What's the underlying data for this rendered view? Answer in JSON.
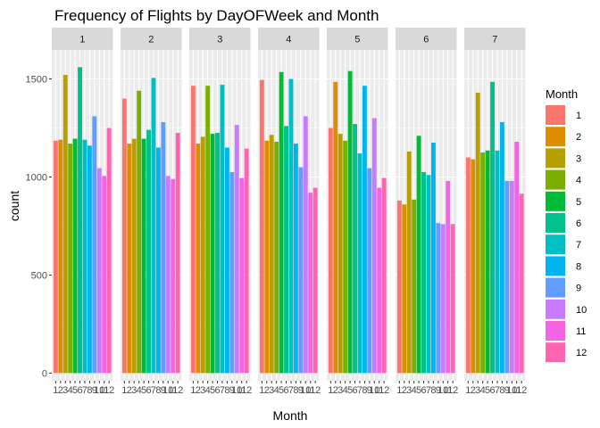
{
  "chart_data": {
    "type": "bar",
    "title": "Frequency of Flights by DayOFWeek and Month",
    "xlabel": "Month",
    "ylabel": "count",
    "ylim": [
      0,
      1650
    ],
    "yticks": [
      0,
      500,
      1000,
      1500
    ],
    "categories": [
      "1",
      "2",
      "3",
      "4",
      "5",
      "6",
      "7",
      "8",
      "9",
      "10",
      "11",
      "12"
    ],
    "panel_background": "#ebebeb",
    "strip_background": "#d9d9d9",
    "grid": true,
    "legend_position": "right",
    "legend": {
      "title": "Month",
      "entries": [
        {
          "label": "1",
          "color": "#F8766D"
        },
        {
          "label": "2",
          "color": "#DE8C00"
        },
        {
          "label": "3",
          "color": "#B79F00"
        },
        {
          "label": "4",
          "color": "#7CAE00"
        },
        {
          "label": "5",
          "color": "#00BA38"
        },
        {
          "label": "6",
          "color": "#00C08B"
        },
        {
          "label": "7",
          "color": "#00BFC4"
        },
        {
          "label": "8",
          "color": "#00B4F0"
        },
        {
          "label": "9",
          "color": "#619CFF"
        },
        {
          "label": "10",
          "color": "#C77CFF"
        },
        {
          "label": "11",
          "color": "#F564E3"
        },
        {
          "label": "12",
          "color": "#FF64B0"
        }
      ]
    },
    "facets": [
      {
        "label": "1",
        "values": [
          1185,
          1190,
          1520,
          1170,
          1195,
          1560,
          1190,
          1160,
          1310,
          1045,
          1005,
          1250
        ]
      },
      {
        "label": "2",
        "values": [
          1400,
          1170,
          1195,
          1440,
          1195,
          1240,
          1505,
          1150,
          1280,
          1005,
          990,
          1225
        ]
      },
      {
        "label": "3",
        "values": [
          1465,
          1170,
          1205,
          1465,
          1220,
          1225,
          1470,
          1150,
          1025,
          1265,
          995,
          1145
        ]
      },
      {
        "label": "4",
        "values": [
          1495,
          1185,
          1215,
          1180,
          1535,
          1260,
          1500,
          1170,
          1050,
          1310,
          920,
          945
        ]
      },
      {
        "label": "5",
        "values": [
          1250,
          1485,
          1220,
          1185,
          1540,
          1270,
          1120,
          1465,
          1045,
          1300,
          945,
          995
        ]
      },
      {
        "label": "6",
        "values": [
          880,
          860,
          1130,
          885,
          1210,
          1025,
          1010,
          1175,
          765,
          760,
          980,
          760
        ]
      },
      {
        "label": "7",
        "values": [
          1100,
          1090,
          1430,
          1125,
          1135,
          1485,
          1135,
          1280,
          980,
          980,
          1180,
          915
        ]
      }
    ]
  }
}
